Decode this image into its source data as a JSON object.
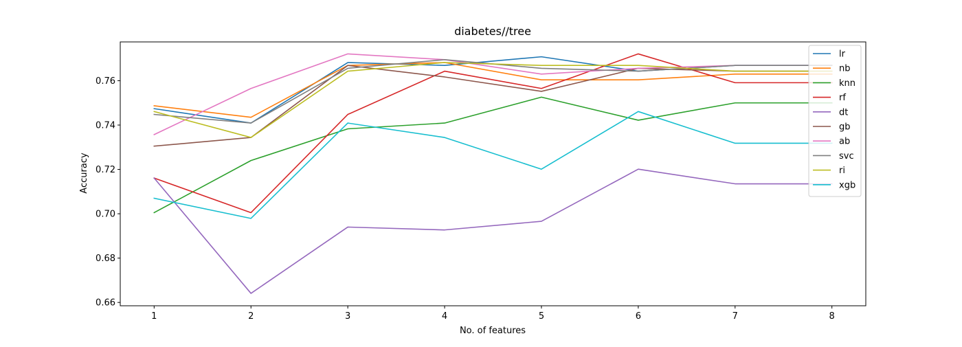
{
  "chart_data": {
    "type": "line",
    "title": "diabetes//tree",
    "xlabel": "No. of features",
    "ylabel": "Accuracy",
    "x": [
      1,
      2,
      3,
      4,
      5,
      6,
      7,
      8
    ],
    "xlim": [
      0.65,
      8.35
    ],
    "ylim": [
      0.6585,
      0.7775
    ],
    "xticks": [
      1,
      2,
      3,
      4,
      5,
      6,
      7,
      8
    ],
    "yticks": [
      0.66,
      0.68,
      0.7,
      0.72,
      0.74,
      0.76
    ],
    "ytick_labels": [
      "0.66",
      "0.68",
      "0.70",
      "0.72",
      "0.74",
      "0.76"
    ],
    "grid": false,
    "legend_position": "top-right",
    "series": [
      {
        "name": "lr",
        "color": "#1f77b4",
        "values": [
          0.7474,
          0.7409,
          0.7682,
          0.7669,
          0.7708,
          0.7643,
          0.7669,
          0.7669
        ]
      },
      {
        "name": "nb",
        "color": "#ff7f0e",
        "values": [
          0.7487,
          0.7435,
          0.7669,
          0.7682,
          0.7604,
          0.7604,
          0.763,
          0.763
        ]
      },
      {
        "name": "knn",
        "color": "#2ca02c",
        "values": [
          0.7005,
          0.724,
          0.7383,
          0.7409,
          0.7526,
          0.7422,
          0.75,
          0.75
        ]
      },
      {
        "name": "rf",
        "color": "#d62728",
        "values": [
          0.7161,
          0.7005,
          0.7448,
          0.7643,
          0.7565,
          0.7721,
          0.7591,
          0.7591
        ]
      },
      {
        "name": "dt",
        "color": "#9467bd",
        "values": [
          0.7161,
          0.6641,
          0.694,
          0.6927,
          0.6966,
          0.7201,
          0.7135,
          0.7135
        ]
      },
      {
        "name": "gb",
        "color": "#8c564b",
        "values": [
          0.7305,
          0.7344,
          0.7669,
          0.7617,
          0.7552,
          0.7656,
          0.7643,
          0.7643
        ]
      },
      {
        "name": "ab",
        "color": "#e377c2",
        "values": [
          0.7357,
          0.7565,
          0.7721,
          0.7695,
          0.763,
          0.7656,
          0.7669,
          0.7669
        ]
      },
      {
        "name": "svc",
        "color": "#7f7f7f",
        "values": [
          0.7448,
          0.7409,
          0.7656,
          0.7695,
          0.7656,
          0.7643,
          0.7669,
          0.7669
        ]
      },
      {
        "name": "ri",
        "color": "#bcbd22",
        "values": [
          0.7461,
          0.7344,
          0.7643,
          0.7682,
          0.7669,
          0.7669,
          0.7643,
          0.7643
        ]
      },
      {
        "name": "xgb",
        "color": "#17becf",
        "values": [
          0.707,
          0.6979,
          0.7409,
          0.7344,
          0.7201,
          0.7461,
          0.7318,
          0.7318
        ]
      }
    ]
  }
}
